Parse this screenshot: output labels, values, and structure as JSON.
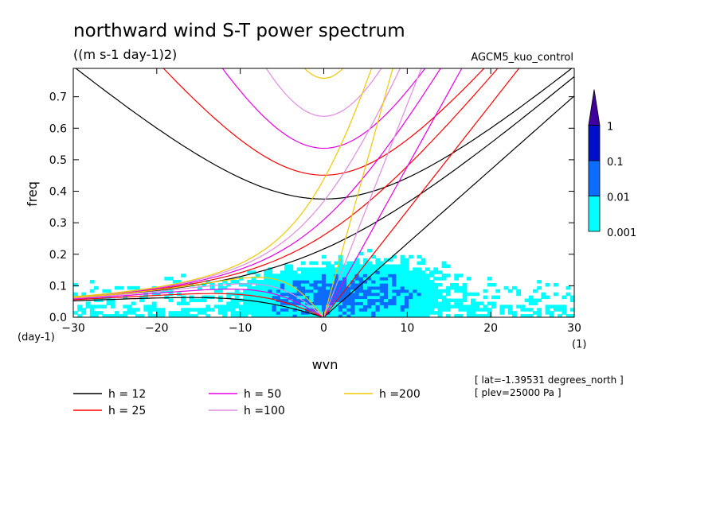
{
  "chart_data": {
    "type": "heatmap",
    "title": "northward wind S-T power spectrum",
    "subtitle": "((m s-1 day-1)2)",
    "experiment": "AGCM5_kuo_control",
    "xlabel": "wvn",
    "ylabel": "freq",
    "x_unit": "(1)",
    "y_unit": "(day-1)",
    "xlim": [
      -30,
      30
    ],
    "ylim": [
      0,
      0.79
    ],
    "xticks": [
      "-30",
      "-20",
      "-10",
      "0",
      "10",
      "20",
      "30"
    ],
    "yticks": [
      "0.0",
      "0.1",
      "0.2",
      "0.3",
      "0.4",
      "0.5",
      "0.6",
      "0.7"
    ],
    "colorbar": {
      "levels": [
        "0.001",
        "0.01",
        "0.1",
        "1"
      ],
      "colors": [
        "#00ffff",
        "#0c6cff",
        "#0010c8",
        "#4000a0"
      ]
    },
    "dispersion_curves": [
      {
        "label": "h = 12",
        "h": 12,
        "color": "#000000"
      },
      {
        "label": "h = 25",
        "h": 25,
        "color": "#ff0000"
      },
      {
        "label": "h = 50",
        "h": 50,
        "color": "#e600e6"
      },
      {
        "label": "h =100",
        "h": 100,
        "color": "#e08ce0"
      },
      {
        "label": "h =200",
        "h": 200,
        "color": "#f0c800"
      }
    ],
    "info": [
      "[ lat=-1.39531 degrees_north ]",
      "[ plev=25000 Pa ]"
    ]
  }
}
